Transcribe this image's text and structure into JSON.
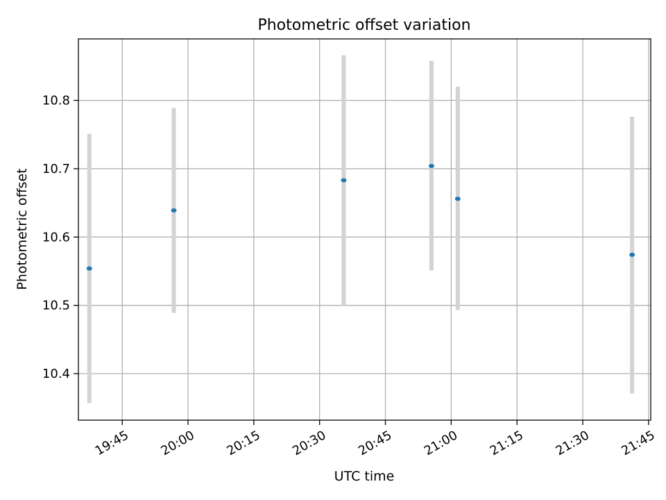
{
  "chart_data": {
    "type": "scatter",
    "title": "Photometric offset variation",
    "xlabel": "UTC time",
    "ylabel": "Photometric offset",
    "xlim": [
      "19:35",
      "21:45:30"
    ],
    "ylim": [
      10.332,
      10.89
    ],
    "x_ticks": [
      "19:45",
      "20:00",
      "20:15",
      "20:30",
      "20:45",
      "21:00",
      "21:15",
      "21:30",
      "21:45"
    ],
    "y_ticks": [
      10.4,
      10.5,
      10.6,
      10.7,
      10.8
    ],
    "grid": true,
    "points": [
      {
        "x": "19:37:30",
        "y": 10.554,
        "err_low": 10.357,
        "err_high": 10.751
      },
      {
        "x": "19:56:45",
        "y": 10.639,
        "err_low": 10.489,
        "err_high": 10.789
      },
      {
        "x": "20:35:30",
        "y": 10.683,
        "err_low": 10.5,
        "err_high": 10.866
      },
      {
        "x": "20:55:30",
        "y": 10.704,
        "err_low": 10.551,
        "err_high": 10.858
      },
      {
        "x": "21:01:30",
        "y": 10.656,
        "err_low": 10.493,
        "err_high": 10.82
      },
      {
        "x": "21:41:15",
        "y": 10.574,
        "err_low": 10.371,
        "err_high": 10.776
      }
    ],
    "colors": {
      "point": "#1f77b4",
      "errorbar": "#d3d3d3",
      "grid": "#b0b0b0",
      "axes": "#000000"
    }
  }
}
